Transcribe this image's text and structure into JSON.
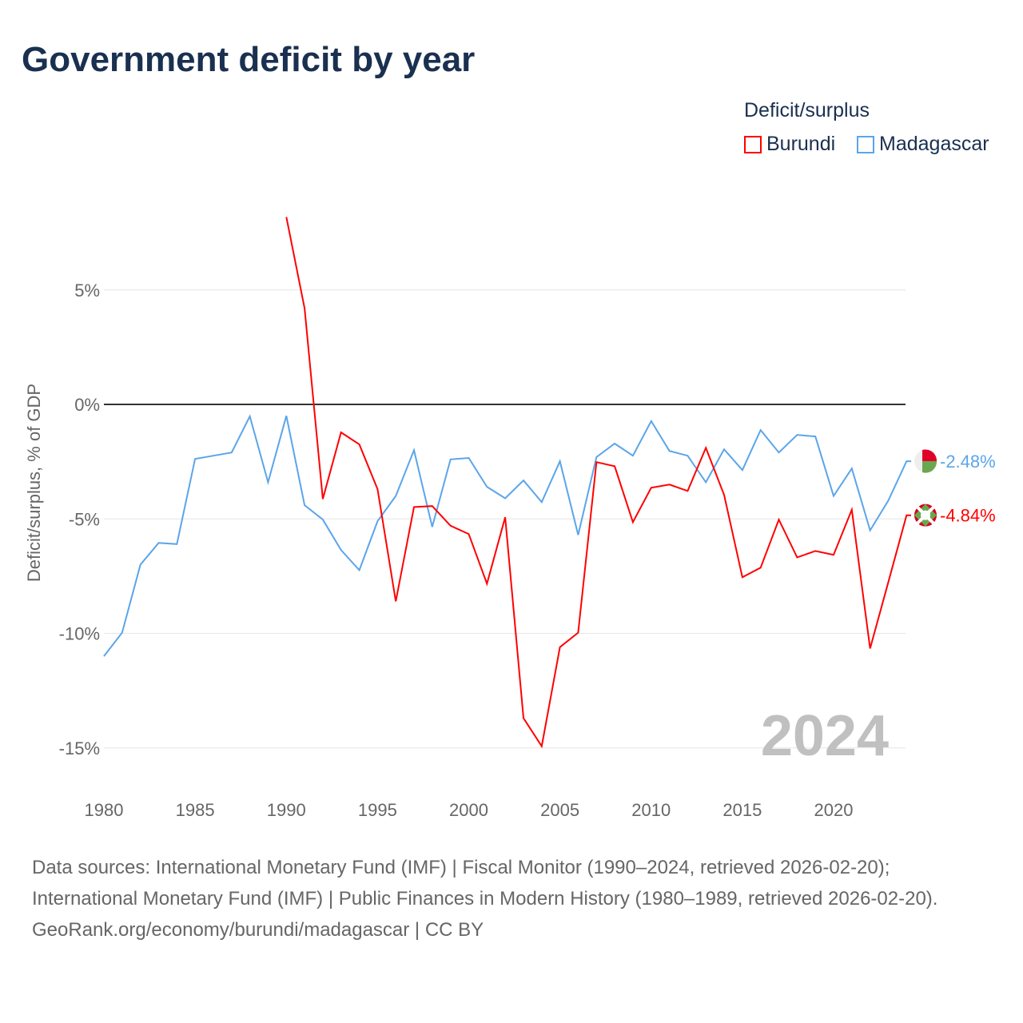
{
  "chart_data": {
    "type": "line",
    "title": "Government deficit by year",
    "xlabel": "",
    "ylabel": "Deficit/surplus, % of GDP",
    "xlim": [
      1980,
      2024
    ],
    "ylim": [
      -16,
      9
    ],
    "x_ticks": [
      1980,
      1985,
      1990,
      1995,
      2000,
      2005,
      2010,
      2015,
      2020
    ],
    "y_ticks": [
      {
        "v": 5,
        "label": "5%"
      },
      {
        "v": 0,
        "label": "0%"
      },
      {
        "v": -5,
        "label": "-5%"
      },
      {
        "v": -10,
        "label": "-10%"
      },
      {
        "v": -15,
        "label": "-15%"
      }
    ],
    "legend_title": "Deficit/surplus",
    "legend_position": "top-right",
    "year_watermark": "2024",
    "series": [
      {
        "name": "Burundi",
        "color": "#ff0000",
        "end_label": "-4.84%",
        "start": 1990,
        "values": [
          8.18,
          4.2,
          -4.13,
          -1.22,
          -1.75,
          -3.7,
          -8.6,
          -4.48,
          -4.44,
          -5.3,
          -5.66,
          -7.83,
          -4.93,
          -13.7,
          -14.93,
          -10.6,
          -9.97,
          -2.52,
          -2.7,
          -5.14,
          -3.64,
          -3.5,
          -3.78,
          -1.9,
          -3.95,
          -7.55,
          -7.13,
          -5.03,
          -6.68,
          -6.4,
          -6.57,
          -4.6,
          -10.66,
          -7.76,
          -4.84
        ]
      },
      {
        "name": "Madagascar",
        "color": "#5aa5ea",
        "end_label": "-2.48%",
        "start": 1980,
        "values": [
          -11.0,
          -9.97,
          -7.0,
          -6.05,
          -6.1,
          -2.38,
          -2.24,
          -2.1,
          -0.52,
          -3.4,
          -0.5,
          -4.4,
          -5.03,
          -6.36,
          -7.24,
          -5.1,
          -4.0,
          -2.0,
          -5.35,
          -2.4,
          -2.34,
          -3.6,
          -4.1,
          -3.32,
          -4.27,
          -2.48,
          -5.7,
          -2.3,
          -1.71,
          -2.24,
          -0.73,
          -2.03,
          -2.24,
          -3.4,
          -1.96,
          -2.87,
          -1.12,
          -2.1,
          -1.33,
          -1.4,
          -4.0,
          -2.8,
          -5.5,
          -4.2,
          -2.48
        ]
      }
    ]
  },
  "sources": {
    "line1": "Data sources: International Monetary Fund (IMF) | Fiscal Monitor (1990–2024, retrieved 2026-02-20); International Monetary Fund (IMF) | Public Finances in Modern History (1980–1989, retrieved 2026-02-20).",
    "line2": "GeoRank.org/economy/burundi/madagascar | CC BY"
  }
}
